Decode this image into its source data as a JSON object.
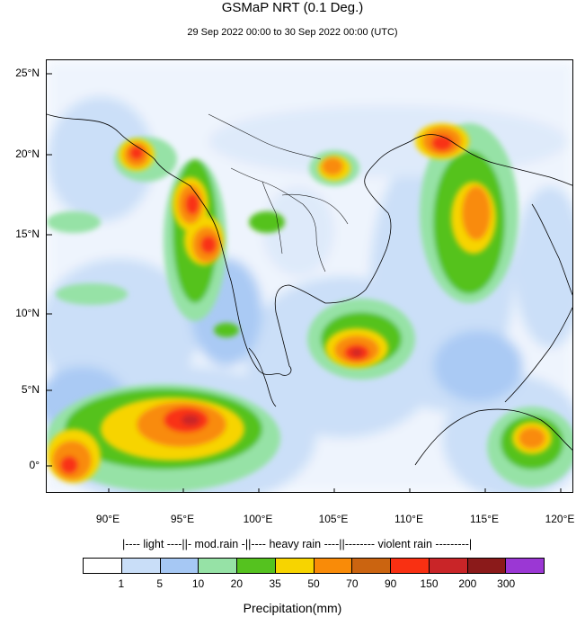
{
  "title": "GSMaP NRT (0.1 Deg.)",
  "subtitle": "29 Sep 2022 00:00 to 30 Sep 2022 00:00 (UTC)",
  "lat_labels": [
    "25°N",
    "20°N",
    "15°N",
    "10°N",
    "5°N",
    "0°"
  ],
  "lon_labels": [
    "90°E",
    "95°E",
    "100°E",
    "105°E",
    "110°E",
    "115°E",
    "120°E"
  ],
  "legend": {
    "category_header": "|---- light ----||- mod.rain -||---- heavy rain ----||-------- violent rain ---------|",
    "colors": [
      "#ffffff",
      "#c9def8",
      "#a6c8f4",
      "#96e2a6",
      "#55c21f",
      "#f7d400",
      "#f98b08",
      "#cb6410",
      "#f93012",
      "#c92528",
      "#8b1a1a",
      "#9b37d4"
    ],
    "boundaries": [
      "1",
      "5",
      "10",
      "20",
      "35",
      "50",
      "70",
      "90",
      "150",
      "200",
      "300"
    ],
    "axis_title": "Precipitation(mm)"
  }
}
